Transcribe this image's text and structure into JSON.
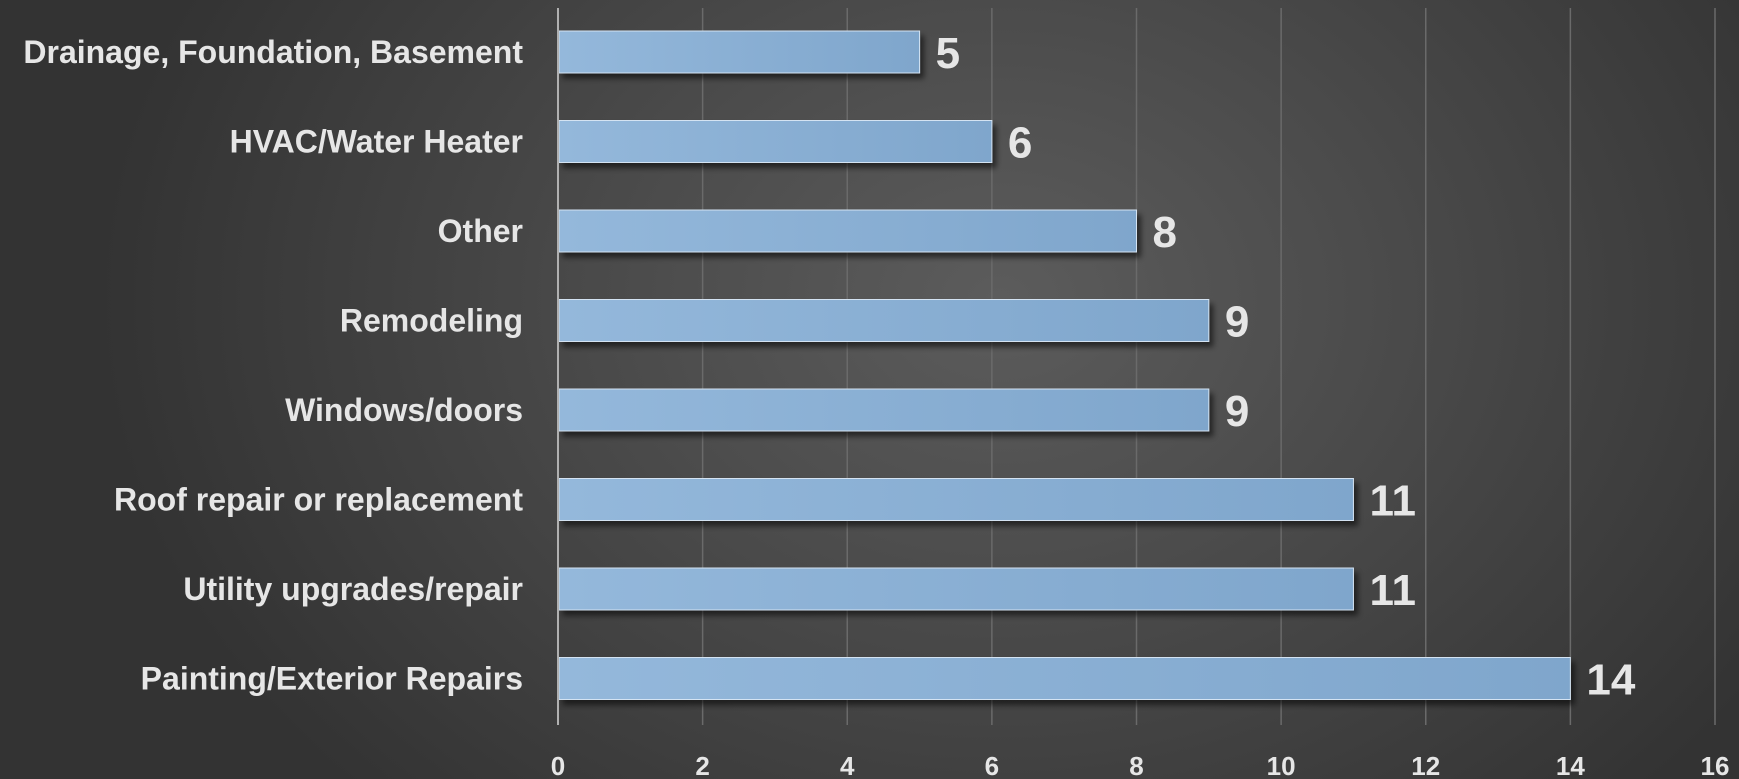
{
  "chart_data": {
    "type": "bar",
    "orientation": "horizontal",
    "categories": [
      "Drainage, Foundation, Basement",
      "HVAC/Water Heater",
      "Other",
      "Remodeling",
      "Windows/doors",
      "Roof repair or replacement",
      "Utility upgrades/repair",
      "Painting/Exterior Repairs"
    ],
    "values": [
      5,
      6,
      8,
      9,
      9,
      11,
      11,
      14
    ],
    "value_labels": [
      "5",
      "6",
      "8",
      "9",
      "9",
      "11",
      "11",
      "14"
    ],
    "xlim": [
      0,
      16
    ],
    "xticks": [
      0,
      2,
      4,
      6,
      8,
      10,
      12,
      14,
      16
    ],
    "xtick_labels": [
      "0",
      "2",
      "4",
      "6",
      "8",
      "10",
      "12",
      "14",
      "16"
    ],
    "grid": "vertical",
    "legend": "none",
    "colors": {
      "bar_light": "#94b8db",
      "bar_dark": "#7fa6cc",
      "text": "#e6e6e6",
      "gridline": "#6a6a6a",
      "axis": "#b0b0b0"
    }
  }
}
